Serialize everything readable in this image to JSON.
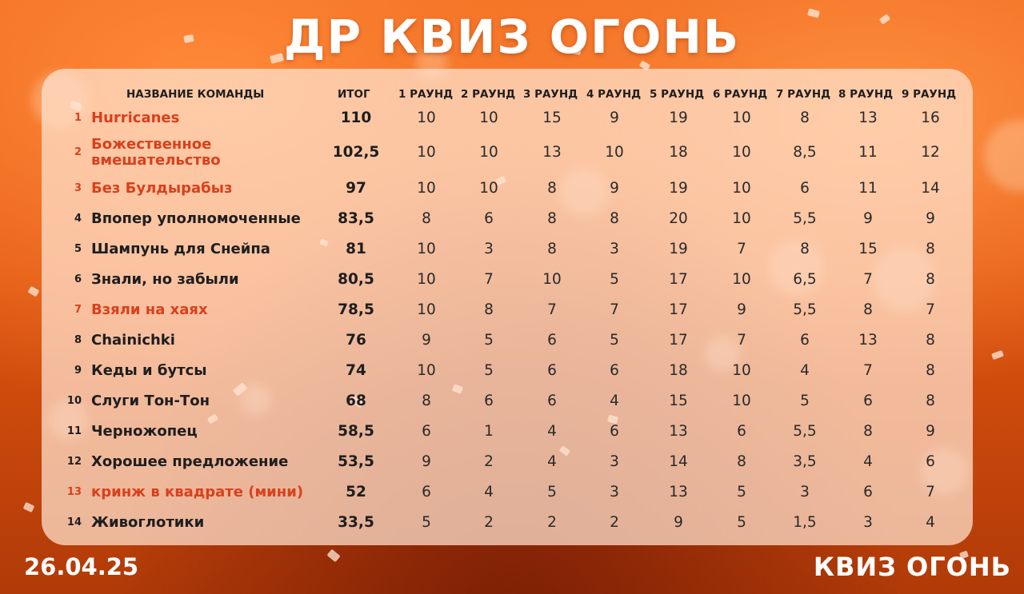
{
  "title": "ДР КВИЗ ОГОНЬ",
  "date": "26.04.25",
  "logo_text": "КВИЗ ОГОНЬ",
  "colors": {
    "background": "#e65a12",
    "highlight_team": "#d9401c",
    "panel": "#ffe1cd"
  },
  "table": {
    "headers": [
      "НАЗВАНИЕ КОМАНДЫ",
      "ИТОГ",
      "1 РАУНД",
      "2 РАУНД",
      "3 РАУНД",
      "4 РАУНД",
      "5 РАУНД",
      "6 РАУНД",
      "7 РАУНД",
      "8 РАУНД",
      "9 РАУНД"
    ],
    "rows": [
      {
        "rank": "1",
        "team": "Hurricanes",
        "highlight": true,
        "total": "110",
        "rounds": [
          "10",
          "10",
          "15",
          "9",
          "19",
          "10",
          "8",
          "13",
          "16"
        ]
      },
      {
        "rank": "2",
        "team": "Божественное вмешательство",
        "highlight": true,
        "total": "102,5",
        "rounds": [
          "10",
          "10",
          "13",
          "10",
          "18",
          "10",
          "8,5",
          "11",
          "12"
        ]
      },
      {
        "rank": "3",
        "team": "Без Булдырабыз",
        "highlight": true,
        "total": "97",
        "rounds": [
          "10",
          "10",
          "8",
          "9",
          "19",
          "10",
          "6",
          "11",
          "14"
        ]
      },
      {
        "rank": "4",
        "team": "Впопер уполномоченные",
        "highlight": false,
        "total": "83,5",
        "rounds": [
          "8",
          "6",
          "8",
          "8",
          "20",
          "10",
          "5,5",
          "9",
          "9"
        ]
      },
      {
        "rank": "5",
        "team": "Шампунь для Снейпа",
        "highlight": false,
        "total": "81",
        "rounds": [
          "10",
          "3",
          "8",
          "3",
          "19",
          "7",
          "8",
          "15",
          "8"
        ]
      },
      {
        "rank": "6",
        "team": "Знали, но забыли",
        "highlight": false,
        "total": "80,5",
        "rounds": [
          "10",
          "7",
          "10",
          "5",
          "17",
          "10",
          "6,5",
          "7",
          "8"
        ]
      },
      {
        "rank": "7",
        "team": "Взяли на хаях",
        "highlight": true,
        "total": "78,5",
        "rounds": [
          "10",
          "8",
          "7",
          "7",
          "17",
          "9",
          "5,5",
          "8",
          "7"
        ]
      },
      {
        "rank": "8",
        "team": "Chainichki",
        "highlight": false,
        "total": "76",
        "rounds": [
          "9",
          "5",
          "6",
          "5",
          "17",
          "7",
          "6",
          "13",
          "8"
        ]
      },
      {
        "rank": "9",
        "team": "Кеды и бутсы",
        "highlight": false,
        "total": "74",
        "rounds": [
          "10",
          "5",
          "6",
          "6",
          "18",
          "10",
          "4",
          "7",
          "8"
        ]
      },
      {
        "rank": "10",
        "team": "Слуги Тон-Тон",
        "highlight": false,
        "total": "68",
        "rounds": [
          "8",
          "6",
          "6",
          "4",
          "15",
          "10",
          "5",
          "6",
          "8"
        ]
      },
      {
        "rank": "11",
        "team": "Черножопец",
        "highlight": false,
        "total": "58,5",
        "rounds": [
          "6",
          "1",
          "4",
          "6",
          "13",
          "6",
          "5,5",
          "8",
          "9"
        ]
      },
      {
        "rank": "12",
        "team": "Хорошее предложение",
        "highlight": false,
        "total": "53,5",
        "rounds": [
          "9",
          "2",
          "4",
          "3",
          "14",
          "8",
          "3,5",
          "4",
          "6"
        ]
      },
      {
        "rank": "13",
        "team": "кринж в квадрате (мини)",
        "highlight": true,
        "total": "52",
        "rounds": [
          "6",
          "4",
          "5",
          "3",
          "13",
          "5",
          "3",
          "6",
          "7"
        ]
      },
      {
        "rank": "14",
        "team": "Живоглотики",
        "highlight": false,
        "total": "33,5",
        "rounds": [
          "5",
          "2",
          "2",
          "2",
          "9",
          "5",
          "1,5",
          "3",
          "4"
        ]
      }
    ]
  }
}
